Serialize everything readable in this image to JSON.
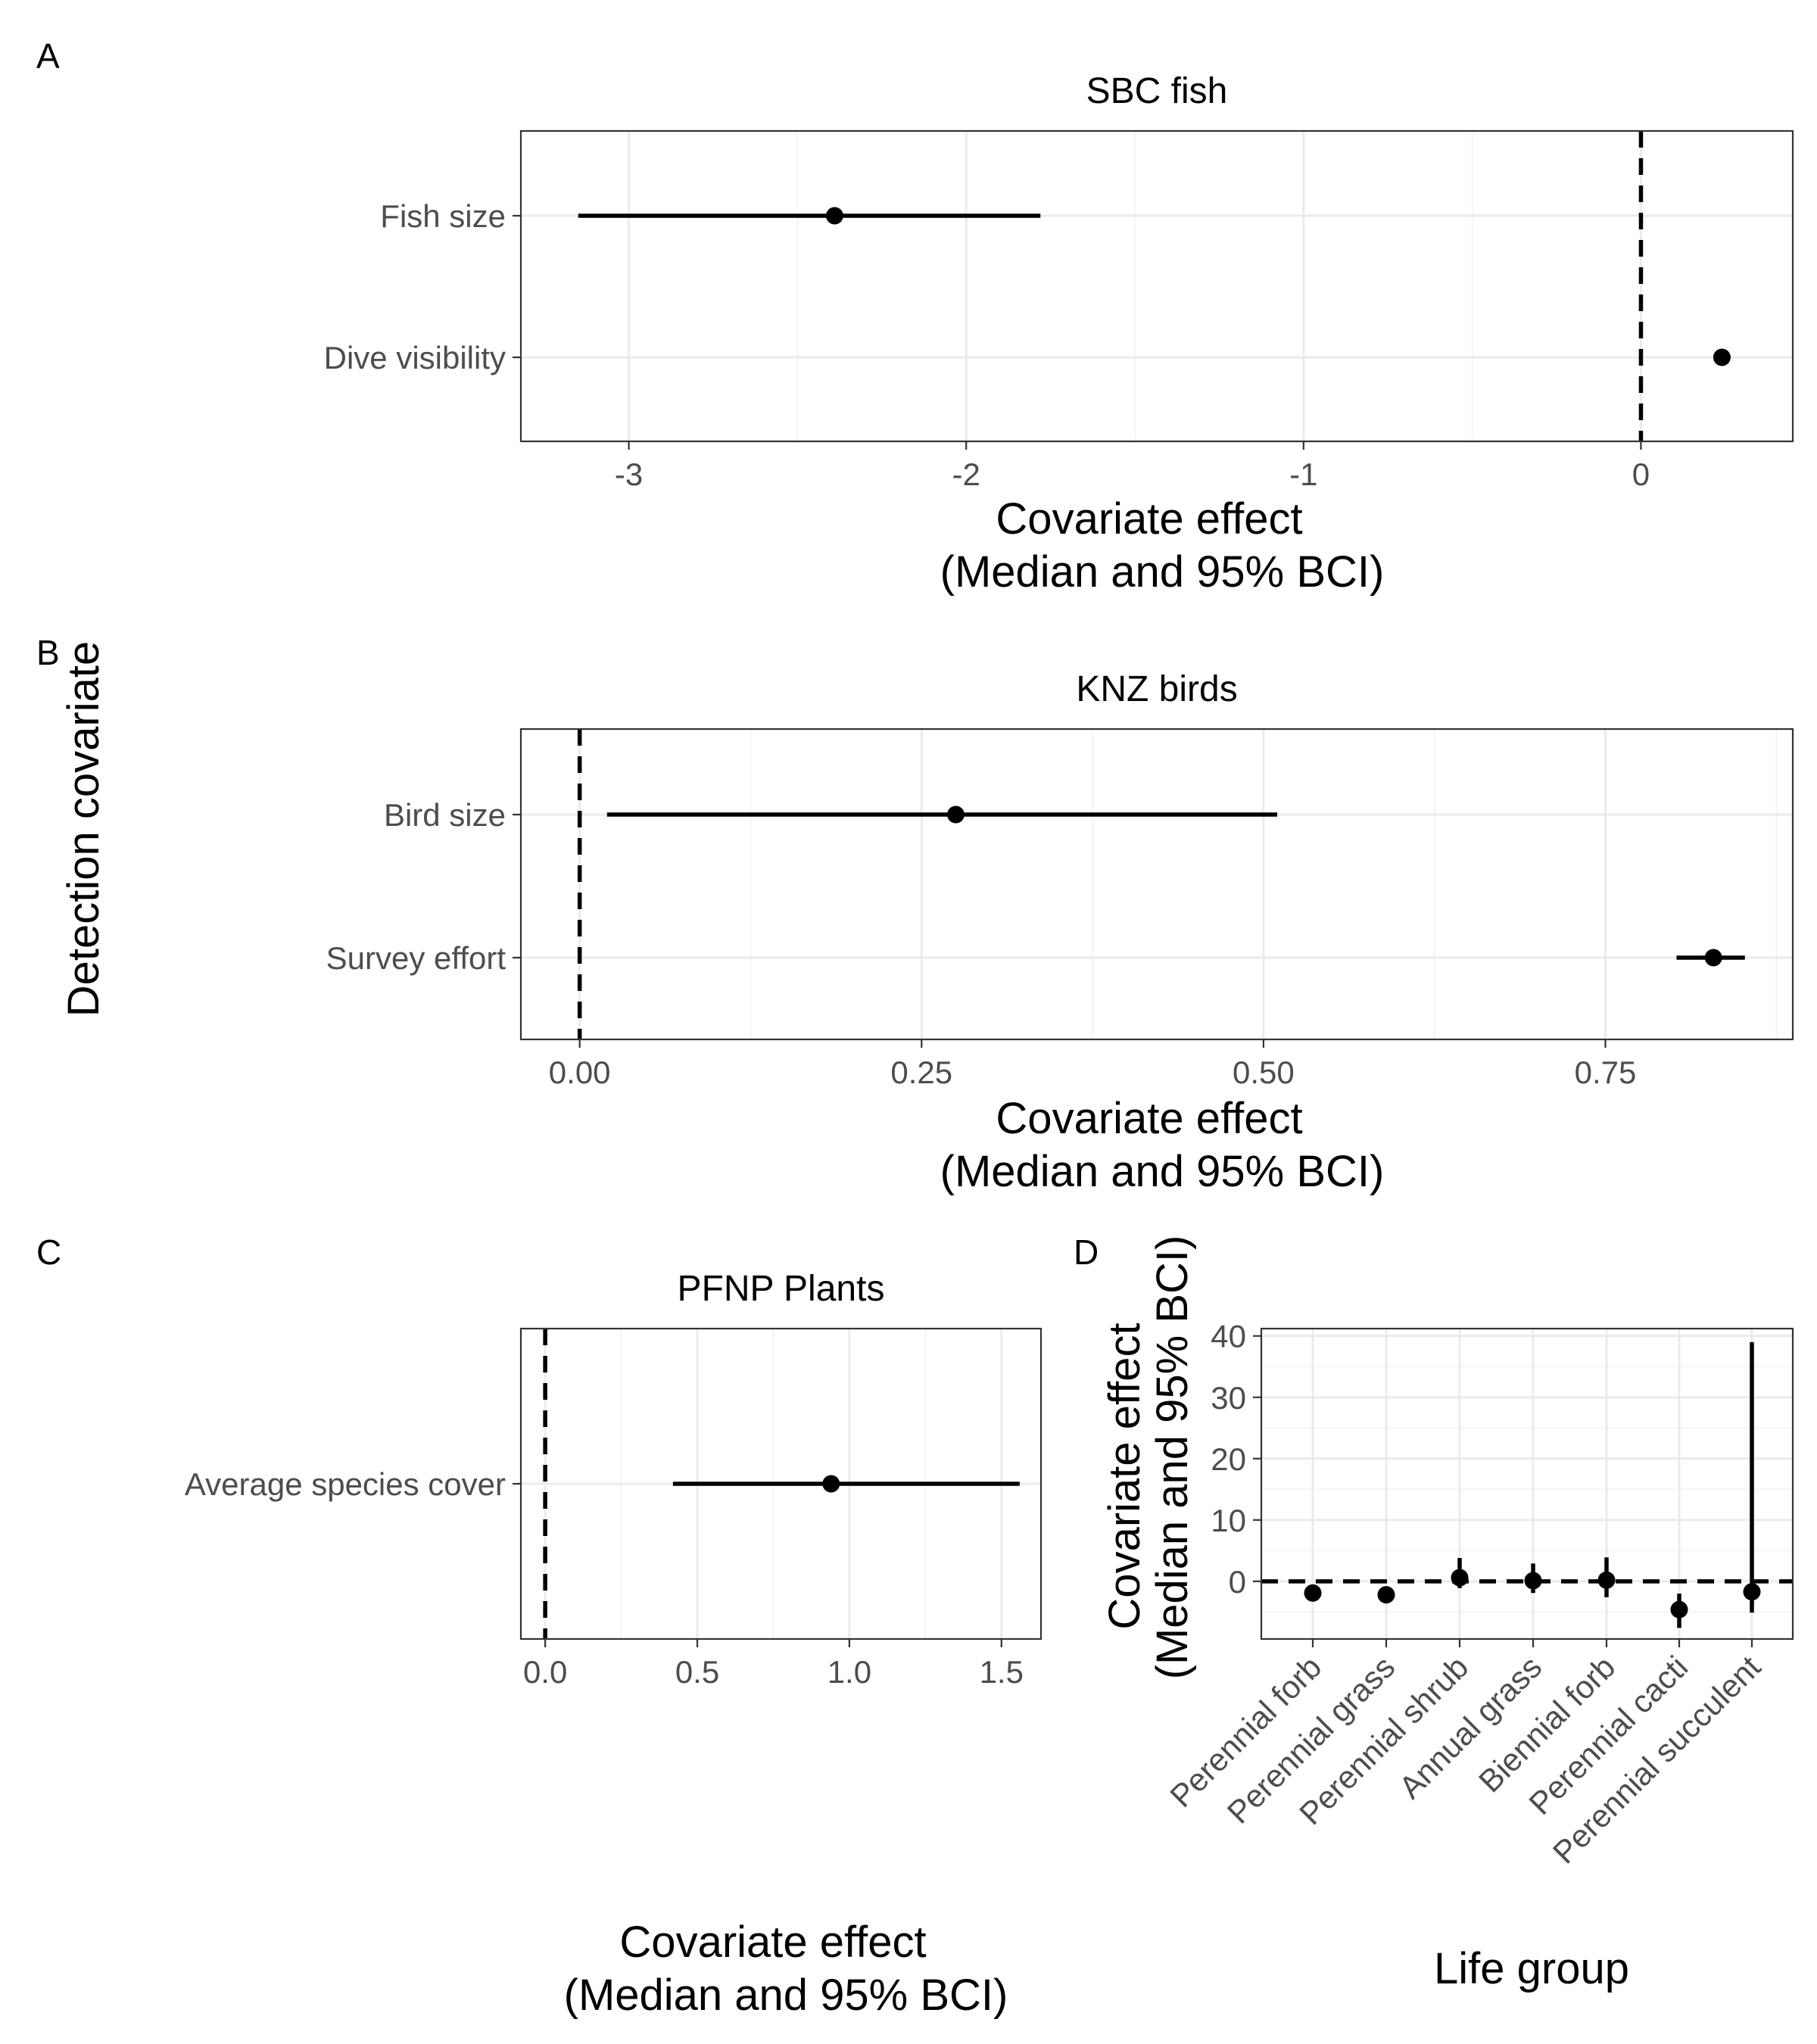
{
  "figure": {
    "y_axis_title": "Detection covariate",
    "x_axis_title_line1": "Covariate effect",
    "x_axis_title_line2": "(Median and 95% BCI)"
  },
  "chart_data": [
    {
      "panel": "A",
      "type": "scatter",
      "title": "SBC fish",
      "orientation": "horizontal",
      "xlabel": "Covariate effect (Median and 95% BCI)",
      "ylabel": "Detection covariate",
      "xlim": [
        -3.32,
        0.45
      ],
      "x_ticks": [
        -3,
        -2,
        -1,
        0
      ],
      "x_tick_labels": [
        "-3",
        "-2",
        "-1",
        "0"
      ],
      "categories": [
        "Fish size",
        "Dive visibility"
      ],
      "median": [
        -2.39,
        0.24
      ],
      "lower": [
        -3.15,
        0.24
      ],
      "upper": [
        -1.78,
        0.24
      ],
      "reference_line": 0,
      "grid": true
    },
    {
      "panel": "B",
      "type": "scatter",
      "title": "KNZ birds",
      "orientation": "horizontal",
      "xlabel": "Covariate effect (Median and 95% BCI)",
      "ylabel": "Detection covariate",
      "xlim": [
        -0.043,
        0.887
      ],
      "x_ticks": [
        0,
        0.25,
        0.5,
        0.75
      ],
      "x_tick_labels": [
        "0.00",
        "0.25",
        "0.50",
        "0.75"
      ],
      "categories": [
        "Bird size",
        "Survey effort"
      ],
      "median": [
        0.275,
        0.829
      ],
      "lower": [
        0.02,
        0.802
      ],
      "upper": [
        0.51,
        0.852
      ],
      "reference_line": 0,
      "grid": true
    },
    {
      "panel": "C",
      "type": "scatter",
      "title": "PFNP Plants",
      "orientation": "horizontal",
      "xlabel": "Covariate effect (Median and 95% BCI)",
      "ylabel": "Detection covariate",
      "xlim": [
        -0.08,
        1.63
      ],
      "x_ticks": [
        0,
        0.5,
        1,
        1.5
      ],
      "x_tick_labels": [
        "0.0",
        "0.5",
        "1.0",
        "1.5"
      ],
      "categories": [
        "Average species cover"
      ],
      "median": [
        0.94
      ],
      "lower": [
        0.42
      ],
      "upper": [
        1.56
      ],
      "reference_line": 0,
      "grid": true
    },
    {
      "panel": "D",
      "type": "scatter",
      "title": "",
      "orientation": "vertical",
      "xlabel": "Life group",
      "ylabel_line1": "Covariate effect",
      "ylabel_line2": "(Median and 95% BCI)",
      "ylim": [
        -9.4,
        41.2
      ],
      "y_ticks": [
        0,
        10,
        20,
        30,
        40
      ],
      "y_tick_labels": [
        "0",
        "10",
        "20",
        "30",
        "40"
      ],
      "categories": [
        "Perennial forb",
        "Perennial grass",
        "Perennial shrub",
        "Annual grass",
        "Biennial forb",
        "Perennial cacti",
        "Perennial succulent"
      ],
      "median": [
        -1.9,
        -2.2,
        0.6,
        0.1,
        0.2,
        -4.6,
        -1.7
      ],
      "lower": [
        -3.3,
        -3.6,
        -1.1,
        -1.9,
        -2.6,
        -7.6,
        -5.1
      ],
      "upper": [
        -0.7,
        -0.9,
        3.8,
        2.9,
        3.9,
        -2.0,
        39.0
      ],
      "reference_line": 0,
      "grid": true
    }
  ]
}
